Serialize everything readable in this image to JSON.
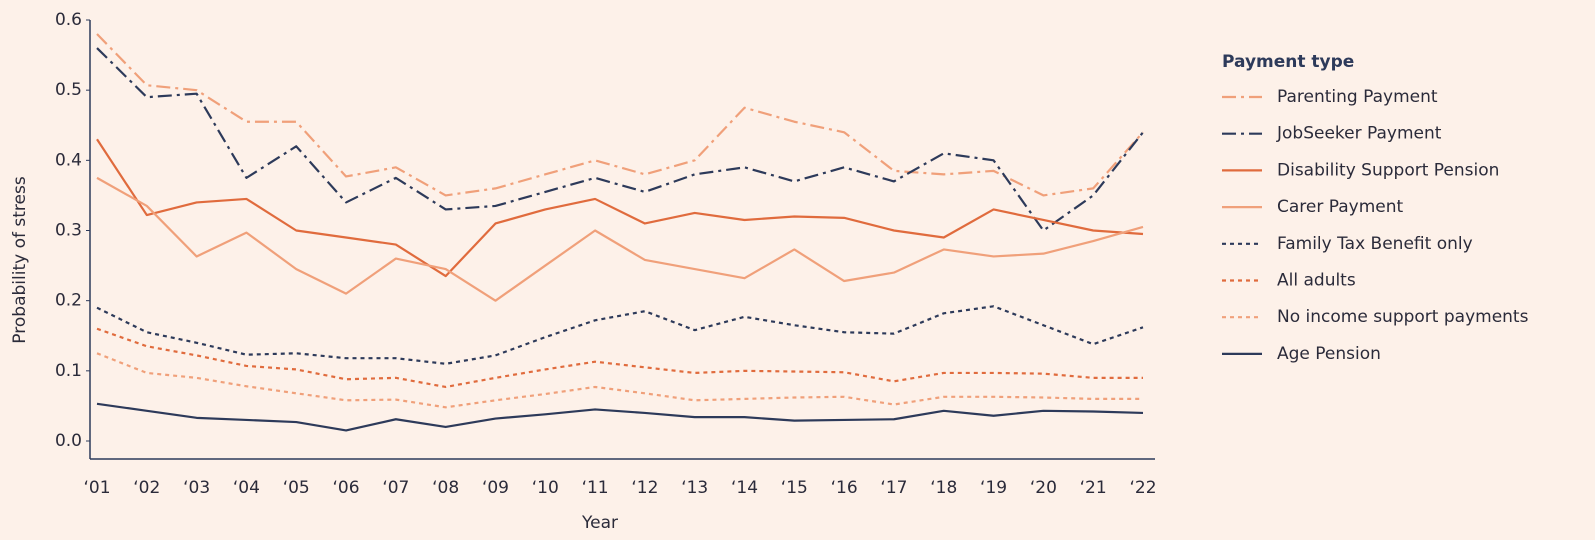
{
  "chart_data": {
    "type": "line",
    "x_label": "Year",
    "y_label": "Probability of stress",
    "legend_title": "Payment type",
    "legend": "right",
    "categories": [
      "‘01",
      "‘02",
      "‘03",
      "‘04",
      "‘05",
      "‘06",
      "‘07",
      "‘08",
      "‘09",
      "‘10",
      "‘11",
      "‘12",
      "‘13",
      "‘14",
      "‘15",
      "‘16",
      "‘17",
      "‘18",
      "‘19",
      "‘20",
      "‘21",
      "‘22"
    ],
    "ylim": [
      0,
      0.6
    ],
    "yticks": [
      {
        "value": 0,
        "label": "0.0"
      },
      0.1,
      0.2,
      0.3,
      0.4,
      0.5,
      0.6
    ],
    "series": [
      {
        "name": "Parenting Payment",
        "color": "#f0a07a",
        "style": "dashdot",
        "values": [
          0.58,
          0.507,
          0.5,
          0.455,
          0.455,
          0.377,
          0.39,
          0.35,
          0.36,
          0.38,
          0.4,
          0.38,
          0.4,
          0.475,
          0.455,
          0.44,
          0.385,
          0.38,
          0.385,
          0.35,
          0.36,
          0.44
        ]
      },
      {
        "name": "JobSeeker Payment",
        "color": "#2d3a5a",
        "style": "dashdot",
        "values": [
          0.56,
          0.49,
          0.495,
          0.375,
          0.42,
          0.34,
          0.375,
          0.33,
          0.335,
          0.355,
          0.375,
          0.355,
          0.38,
          0.39,
          0.37,
          0.39,
          0.37,
          0.41,
          0.4,
          0.3,
          0.35,
          0.44
        ]
      },
      {
        "name": "Disability Support Pension",
        "color": "#e06b3d",
        "style": "solid",
        "values": [
          0.43,
          0.322,
          0.34,
          0.345,
          0.3,
          0.29,
          0.28,
          0.235,
          0.31,
          0.33,
          0.345,
          0.31,
          0.325,
          0.315,
          0.32,
          0.318,
          0.3,
          0.29,
          0.33,
          0.315,
          0.3,
          0.295
        ]
      },
      {
        "name": "Carer Payment",
        "color": "#f0a07a",
        "style": "solid",
        "values": [
          0.375,
          0.335,
          0.263,
          0.297,
          0.245,
          0.21,
          0.26,
          0.245,
          0.2,
          0.25,
          0.3,
          0.258,
          0.245,
          0.232,
          0.273,
          0.228,
          0.24,
          0.273,
          0.263,
          0.267,
          0.285,
          0.305
        ]
      },
      {
        "name": "Family Tax Benefit only",
        "color": "#2d3a5a",
        "style": "dotted",
        "values": [
          0.19,
          0.155,
          0.14,
          0.123,
          0.125,
          0.118,
          0.118,
          0.11,
          0.122,
          0.148,
          0.172,
          0.185,
          0.158,
          0.177,
          0.165,
          0.155,
          0.153,
          0.182,
          0.192,
          0.165,
          0.138,
          0.162
        ]
      },
      {
        "name": "All adults",
        "color": "#e06b3d",
        "style": "dotted",
        "values": [
          0.16,
          0.135,
          0.122,
          0.107,
          0.102,
          0.088,
          0.09,
          0.077,
          0.09,
          0.102,
          0.113,
          0.105,
          0.097,
          0.1,
          0.099,
          0.098,
          0.085,
          0.097,
          0.097,
          0.096,
          0.09,
          0.09
        ]
      },
      {
        "name": "No income support payments",
        "color": "#f0a07a",
        "style": "dotted",
        "values": [
          0.125,
          0.097,
          0.09,
          0.078,
          0.068,
          0.058,
          0.059,
          0.048,
          0.058,
          0.067,
          0.077,
          0.068,
          0.058,
          0.06,
          0.062,
          0.063,
          0.052,
          0.063,
          0.063,
          0.062,
          0.06,
          0.06
        ]
      },
      {
        "name": "Age Pension",
        "color": "#2d3a5a",
        "style": "solid",
        "values": [
          0.053,
          0.043,
          0.033,
          0.03,
          0.027,
          0.015,
          0.031,
          0.02,
          0.032,
          0.038,
          0.045,
          0.04,
          0.034,
          0.034,
          0.029,
          0.03,
          0.031,
          0.043,
          0.036,
          0.043,
          0.042,
          0.04
        ]
      }
    ]
  }
}
